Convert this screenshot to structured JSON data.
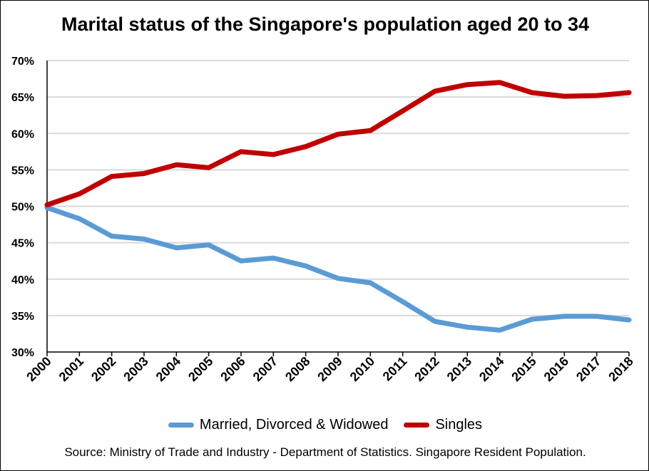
{
  "chart_data": {
    "type": "line",
    "title": "Marital status of the Singapore's population aged 20 to 34",
    "x": [
      "2000",
      "2001",
      "2002",
      "2003",
      "2004",
      "2005",
      "2006",
      "2007",
      "2008",
      "2009",
      "2010",
      "2011",
      "2012",
      "2013",
      "2014",
      "2015",
      "2016",
      "2017",
      "2018"
    ],
    "ylim": [
      0.3,
      0.7
    ],
    "yticks": [
      "30%",
      "35%",
      "40%",
      "45%",
      "50%",
      "55%",
      "60%",
      "65%",
      "70%"
    ],
    "grid": true,
    "legend_position": "bottom",
    "series": [
      {
        "name": "Married, Divorced & Widowed",
        "color": "#5B9BD5",
        "values": [
          0.498,
          0.483,
          0.459,
          0.455,
          0.443,
          0.447,
          0.425,
          0.429,
          0.418,
          0.401,
          0.395,
          0.369,
          0.342,
          0.334,
          0.33,
          0.345,
          0.349,
          0.349,
          0.344
        ]
      },
      {
        "name": "Singles",
        "color": "#C00000",
        "values": [
          0.502,
          0.517,
          0.541,
          0.545,
          0.557,
          0.553,
          0.575,
          0.571,
          0.582,
          0.599,
          0.604,
          0.631,
          0.658,
          0.667,
          0.67,
          0.656,
          0.651,
          0.652,
          0.656
        ]
      }
    ]
  },
  "legend": {
    "married_label": "Married, Divorced & Widowed",
    "singles_label": "Singles"
  },
  "source": "Source: Ministry of Trade and Industry - Department of Statistics. Singapore Resident Population."
}
